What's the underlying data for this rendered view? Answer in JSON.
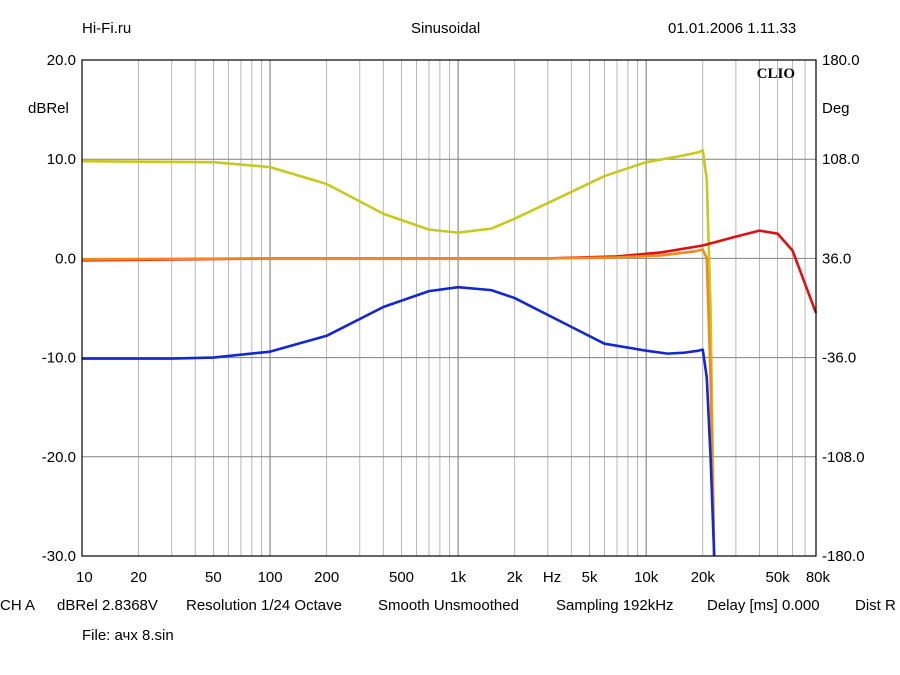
{
  "header": {
    "site": "Hi-Fi.ru",
    "signal": "Sinusoidal",
    "datetime": "01.01.2006 1.11.33"
  },
  "footer": {
    "channel": "CH A",
    "level": "dBRel 2.8368V",
    "resolution": "Resolution 1/24 Octave",
    "smooth": "Smooth Unsmoothed",
    "sampling": "Sampling 192kHz",
    "delay": "Delay [ms] 0.000",
    "dist": "Dist R",
    "file": "File: ачх 8.sin"
  },
  "chart_data": {
    "type": "line",
    "logo": "CLIO",
    "x_scale": "log",
    "xlim": [
      10,
      80000
    ],
    "ylim": [
      -30,
      20
    ],
    "y2lim": [
      -180,
      180
    ],
    "ylabel": "dBRel",
    "y2label": "Deg",
    "xunit": "Hz",
    "x_ticks": [
      "10",
      "20",
      "50",
      "100",
      "200",
      "500",
      "1k",
      "2k",
      "5k",
      "10k",
      "20k",
      "50k",
      "80k"
    ],
    "y_ticks": [
      "20.0",
      "10.0",
      "0.0",
      "-10.0",
      "-20.0",
      "-30.0"
    ],
    "y2_ticks": [
      "180.0",
      "108.0",
      "36.0",
      "-36.0",
      "-108.0",
      "-180.0"
    ],
    "grid": true,
    "colors": {
      "yellow": "#c8c81e",
      "red": "#e01010",
      "orange": "#f08a1e",
      "blue": "#1428d2"
    },
    "series": [
      {
        "color_key": "yellow",
        "x": [
          10,
          50,
          100,
          200,
          400,
          700,
          1000,
          1500,
          2000,
          4000,
          6000,
          10000,
          15000,
          19000,
          20000,
          21000,
          22000,
          23000
        ],
        "y": [
          9.8,
          9.7,
          9.2,
          7.5,
          4.5,
          2.9,
          2.6,
          3.0,
          4.0,
          6.7,
          8.3,
          9.7,
          10.3,
          10.7,
          10.9,
          8.0,
          -5.0,
          -30.0
        ]
      },
      {
        "color_key": "red",
        "x": [
          10,
          100,
          1000,
          3000,
          7000,
          12000,
          20000,
          30000,
          40000,
          50000,
          60000,
          80000
        ],
        "y": [
          -0.2,
          0.0,
          0.0,
          0.0,
          0.2,
          0.6,
          1.3,
          2.2,
          2.8,
          2.5,
          0.8,
          -5.5
        ]
      },
      {
        "color_key": "orange",
        "x": [
          10,
          100,
          1000,
          3000,
          7000,
          12000,
          18000,
          20000,
          21000,
          22000,
          23000
        ],
        "y": [
          -0.1,
          0.0,
          0.0,
          0.0,
          0.1,
          0.3,
          0.7,
          0.9,
          0.0,
          -12.0,
          -30.0
        ]
      },
      {
        "color_key": "blue",
        "x": [
          10,
          30,
          50,
          100,
          200,
          400,
          700,
          1000,
          1500,
          2000,
          4000,
          6000,
          10000,
          13000,
          16000,
          19000,
          20000,
          21000,
          22000,
          23000
        ],
        "y": [
          -10.1,
          -10.1,
          -10.0,
          -9.4,
          -7.8,
          -4.9,
          -3.3,
          -2.9,
          -3.2,
          -4.0,
          -6.9,
          -8.6,
          -9.3,
          -9.6,
          -9.5,
          -9.3,
          -9.2,
          -12.0,
          -20.0,
          -30.0
        ]
      }
    ]
  }
}
